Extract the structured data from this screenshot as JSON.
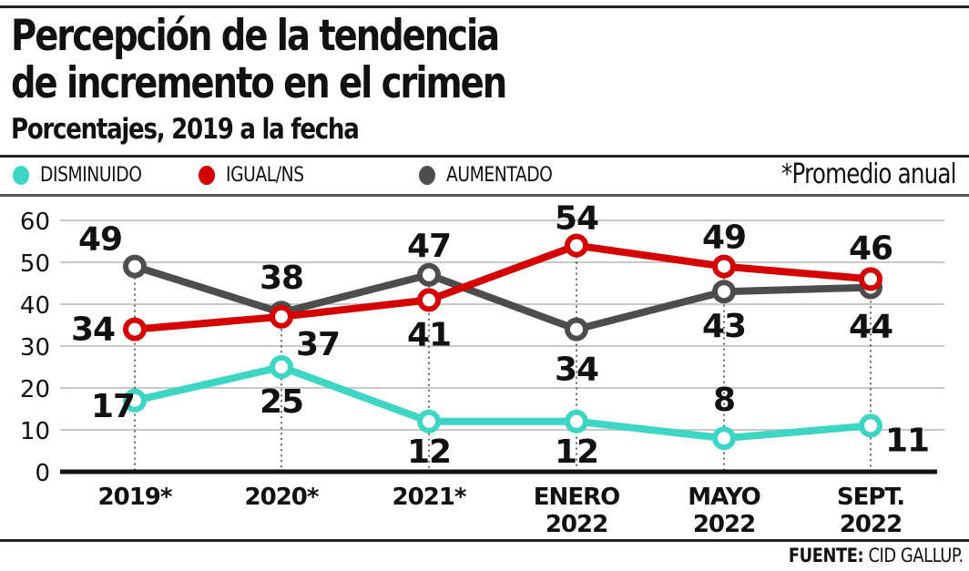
{
  "header": {
    "title_line1": "Percepción de la tendencia",
    "title_line2": "de incremento en el crimen",
    "subtitle": "Porcentajes, 2019 a la fecha"
  },
  "legend": {
    "items": [
      {
        "label": "DISMINUIDO",
        "color": "#3dd6c4"
      },
      {
        "label": "IGUAL/NS",
        "color": "#d50000"
      },
      {
        "label": "AUMENTADO",
        "color": "#4d4d4b"
      }
    ],
    "note": "*Promedio anual"
  },
  "source": {
    "label": "FUENTE:",
    "value": "CID GALLUP."
  },
  "chart_data": {
    "type": "line",
    "title": "Percepción de la tendencia de incremento en el crimen",
    "subtitle": "Porcentajes, 2019 a la fecha",
    "xlabel": "",
    "ylabel": "",
    "categories": [
      [
        "2019*"
      ],
      [
        "2020*"
      ],
      [
        "2021*"
      ],
      [
        "ENERO",
        "2022"
      ],
      [
        "MAYO",
        "2022"
      ],
      [
        "SEPT.",
        "2022"
      ]
    ],
    "yticks": [
      "0",
      "10",
      "20",
      "30",
      "40",
      "50",
      "60"
    ],
    "ylim": [
      0,
      60
    ],
    "grid": true,
    "legend_position": "top",
    "series": [
      {
        "name": "DISMINUIDO",
        "color": "#3dd6c4",
        "values": [
          17,
          25,
          12,
          12,
          8,
          11
        ]
      },
      {
        "name": "IGUAL/NS",
        "color": "#d50000",
        "values": [
          34,
          37,
          41,
          54,
          49,
          46
        ]
      },
      {
        "name": "AUMENTADO",
        "color": "#4d4d4b",
        "values": [
          49,
          38,
          47,
          34,
          43,
          44
        ]
      }
    ]
  }
}
